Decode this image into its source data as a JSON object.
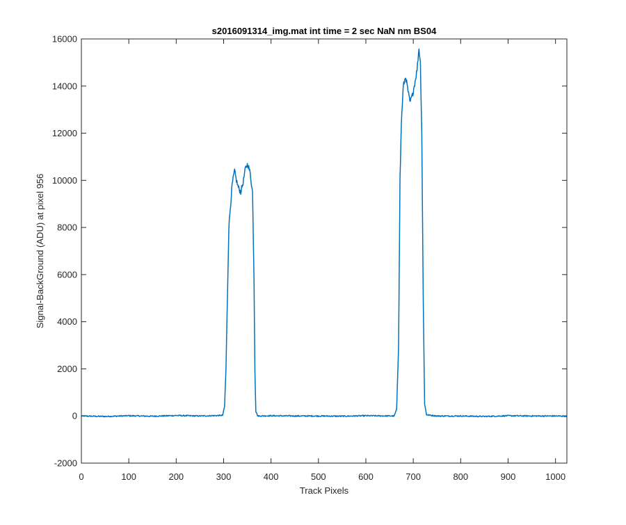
{
  "chart_data": {
    "type": "line",
    "title": "s2016091314_img.mat int time = 2 sec  NaN nm BS04",
    "xlabel": "Track Pixels",
    "ylabel": "Signal-BackGround (ADU) at pixel 956",
    "xlim": [
      0,
      1024
    ],
    "ylim": [
      -2000,
      16000
    ],
    "xticks": [
      0,
      100,
      200,
      300,
      400,
      500,
      600,
      700,
      800,
      900,
      1000
    ],
    "yticks": [
      -2000,
      0,
      2000,
      4000,
      6000,
      8000,
      10000,
      12000,
      14000,
      16000
    ],
    "grid": false,
    "legend": "none",
    "series": [
      {
        "color": "#0072BD",
        "points": [
          [
            0,
            0
          ],
          [
            50,
            -20
          ],
          [
            100,
            10
          ],
          [
            150,
            -10
          ],
          [
            200,
            20
          ],
          [
            250,
            0
          ],
          [
            290,
            20
          ],
          [
            298,
            30
          ],
          [
            302,
            400
          ],
          [
            305,
            2000
          ],
          [
            308,
            5000
          ],
          [
            311,
            8000
          ],
          [
            314,
            8800
          ],
          [
            318,
            9800
          ],
          [
            323,
            10400
          ],
          [
            327,
            10000
          ],
          [
            331,
            9700
          ],
          [
            336,
            9500
          ],
          [
            341,
            9900
          ],
          [
            346,
            10500
          ],
          [
            351,
            10700
          ],
          [
            356,
            10300
          ],
          [
            361,
            9500
          ],
          [
            364,
            6000
          ],
          [
            366,
            2000
          ],
          [
            368,
            200
          ],
          [
            372,
            0
          ],
          [
            400,
            10
          ],
          [
            450,
            0
          ],
          [
            500,
            0
          ],
          [
            550,
            -10
          ],
          [
            600,
            10
          ],
          [
            660,
            0
          ],
          [
            665,
            300
          ],
          [
            669,
            3000
          ],
          [
            672,
            10000
          ],
          [
            675,
            12500
          ],
          [
            679,
            14000
          ],
          [
            684,
            14400
          ],
          [
            688,
            13900
          ],
          [
            693,
            13300
          ],
          [
            698,
            13600
          ],
          [
            703,
            14100
          ],
          [
            708,
            14700
          ],
          [
            712,
            15600
          ],
          [
            715,
            15000
          ],
          [
            718,
            12000
          ],
          [
            721,
            5000
          ],
          [
            724,
            500
          ],
          [
            728,
            50
          ],
          [
            750,
            0
          ],
          [
            800,
            0
          ],
          [
            850,
            -20
          ],
          [
            900,
            10
          ],
          [
            950,
            0
          ],
          [
            1000,
            0
          ],
          [
            1024,
            -10
          ]
        ]
      }
    ]
  }
}
